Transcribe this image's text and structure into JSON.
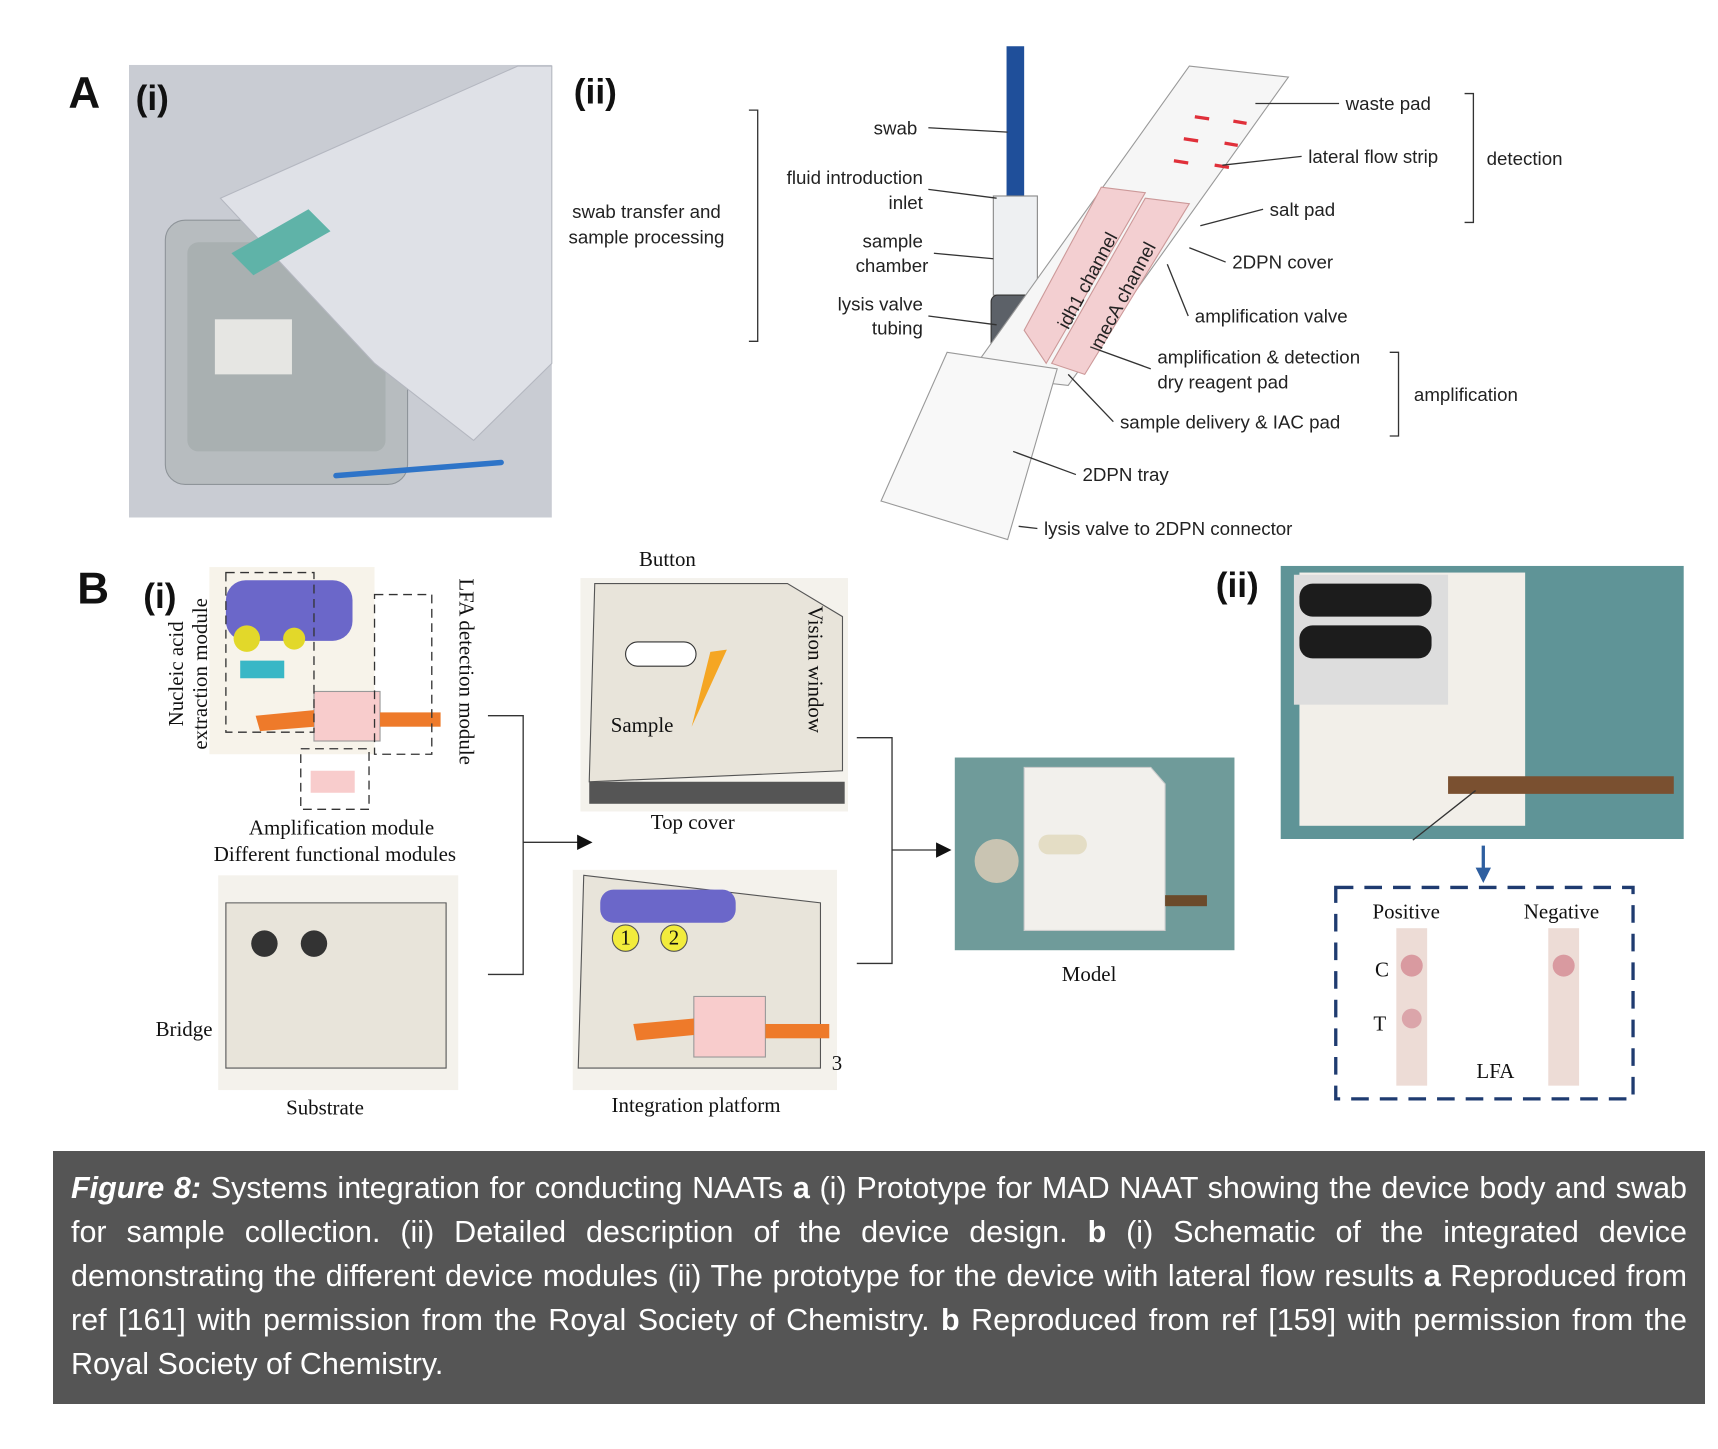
{
  "panel_a": {
    "letter": "A",
    "sub_i": "(i)",
    "sub_ii": "(ii)",
    "labels": {
      "swab": "swab",
      "fluid_inlet": [
        "fluid introduction",
        "inlet"
      ],
      "sample_chamber": [
        "sample",
        "chamber"
      ],
      "lysis_valve": [
        "lysis valve",
        "tubing"
      ],
      "swab_transfer": [
        "swab transfer and",
        "sample processing"
      ],
      "waste_pad": "waste pad",
      "lateral_flow_strip": "lateral flow strip",
      "detection": "detection",
      "salt_pad": "salt pad",
      "cover": "2DPN cover",
      "amplification_valve": "amplification valve",
      "dry_reagent_pad": [
        "amplification & detection",
        "dry reagent pad"
      ],
      "amplification": "amplification",
      "sample_delivery": "sample delivery & IAC pad",
      "tray": "2DPN tray",
      "connector": "lysis valve to 2DPN connector",
      "idh1": "idh1 channel",
      "meca": "mecA channel"
    }
  },
  "panel_b": {
    "letter": "B",
    "sub_i": "(i)",
    "sub_ii": "(ii)",
    "labels": {
      "extraction": [
        "Nucleic acid",
        "extraction module"
      ],
      "lfa_module": "LFA detection module",
      "amplification_module": "Amplification module",
      "functional_modules": "Different functional modules",
      "button": "Button",
      "sample": "Sample",
      "vision_window": "Vision window",
      "top_cover": "Top cover",
      "model": "Model",
      "bridge": "Bridge",
      "substrate": "Substrate",
      "integration": "Integration platform",
      "n1": "1",
      "n2": "2",
      "n3": "3",
      "positive": "Positive",
      "negative": "Negative",
      "c": "C",
      "t": "T",
      "lfa": "LFA"
    }
  },
  "caption": {
    "label": "Figure 8:",
    "parts": [
      {
        "text": " Systems integration for conducting NAATs ",
        "bold": false
      },
      {
        "text": "a",
        "bold": true
      },
      {
        "text": " (i) Prototype for MAD NAAT showing the device body and swab for sample collection. (ii) Detailed description of the device design. ",
        "bold": false
      },
      {
        "text": "b",
        "bold": true
      },
      {
        "text": " (i) Schematic of the integrated device demonstrating the different device modules (ii) The prototype for the device with lateral flow results ",
        "bold": false
      },
      {
        "text": "a",
        "bold": true
      },
      {
        "text": " Reproduced from ref [161] with permission from the Royal Society of Chemistry. ",
        "bold": false
      },
      {
        "text": "b",
        "bold": true
      },
      {
        "text": " Reproduced from ref [159] with permission from the Royal Society of Chemistry.",
        "bold": false
      }
    ]
  }
}
